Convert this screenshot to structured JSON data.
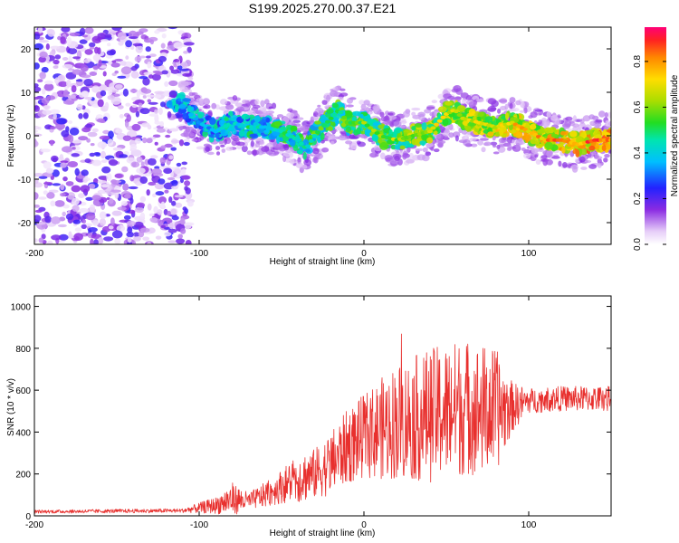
{
  "title": "S199.2025.270.00.37.E21",
  "chart_data": [
    {
      "type": "heatmap",
      "xlabel": "Height of straight line (km)",
      "ylabel": "Frequency (Hz)",
      "xlim": [
        -200,
        150
      ],
      "ylim": [
        -25,
        25
      ],
      "xticks": [
        -200,
        -100,
        0,
        100
      ],
      "yticks": [
        -20,
        -10,
        0,
        10,
        20
      ],
      "ridge": {
        "x": [
          -120,
          -110,
          -100,
          -90,
          -80,
          -70,
          -60,
          -50,
          -40,
          -35,
          -30,
          -20,
          -15,
          -10,
          0,
          10,
          20,
          30,
          40,
          50,
          55,
          60,
          70,
          80,
          90,
          100,
          110,
          120,
          130,
          140,
          150
        ],
        "freq": [
          10,
          7,
          3,
          1,
          3,
          2,
          2,
          1,
          -1,
          -3,
          0,
          4,
          6,
          3,
          3,
          0,
          -1,
          0,
          1,
          5,
          6,
          4,
          3,
          2,
          3,
          1,
          -1,
          -1,
          -2,
          -1,
          -1
        ]
      },
      "colorbar": {
        "label": "Normalized spectral amplitude",
        "range": [
          0,
          0.95
        ],
        "ticks": [
          0,
          0.2,
          0.4,
          0.6,
          0.8
        ]
      }
    },
    {
      "type": "line",
      "xlabel": "Height of straight line (km)",
      "ylabel": "SNR (10 * v/v)",
      "xlim": [
        -200,
        150
      ],
      "ylim": [
        0,
        1050
      ],
      "xticks": [
        -200,
        -100,
        0,
        100
      ],
      "yticks": [
        0,
        200,
        400,
        600,
        800,
        1000
      ],
      "series": [
        {
          "name": "SNR",
          "color": "#e8302e",
          "envelope": {
            "x": [
              -200,
              -110,
              -90,
              -80,
              -70,
              -60,
              -50,
              -40,
              -30,
              -20,
              -10,
              0,
              20,
              40,
              60,
              80,
              90,
              100,
              120,
              150
            ],
            "base": [
              20,
              25,
              50,
              80,
              70,
              100,
              140,
              180,
              200,
              250,
              330,
              380,
              450,
              480,
              520,
              500,
              520,
              550,
              560,
              560
            ],
            "amplitude": [
              8,
              10,
              40,
              80,
              40,
              60,
              80,
              120,
              120,
              150,
              180,
              200,
              280,
              320,
              330,
              300,
              120,
              60,
              60,
              60
            ]
          }
        }
      ]
    }
  ]
}
